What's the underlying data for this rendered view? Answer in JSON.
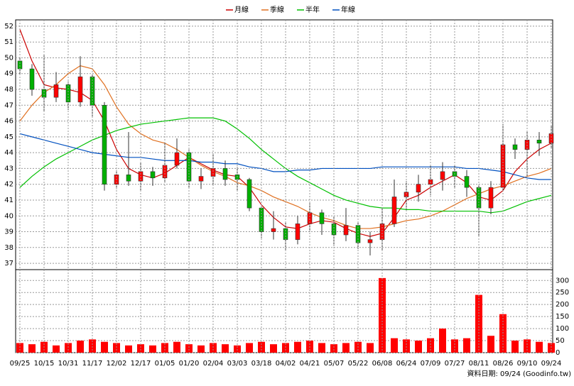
{
  "chart_data": [
    {
      "type": "candlestick",
      "open": [
        49.8,
        49.3,
        48.0,
        47.5,
        48.3,
        47.2,
        48.8,
        47.0,
        42.0,
        42.6,
        42.2,
        42.8,
        42.4,
        43.2,
        44.0,
        42.2,
        42.5,
        43.0,
        42.6,
        42.3,
        40.5,
        39.0,
        39.2,
        38.5,
        39.5,
        40.2,
        39.5,
        38.8,
        39.4,
        38.3,
        38.5,
        39.5,
        41.2,
        41.5,
        42.0,
        42.3,
        42.8,
        42.5,
        41.8,
        40.5,
        41.8,
        44.5,
        44.2,
        44.8,
        44.6
      ],
      "high": [
        50.0,
        49.6,
        50.2,
        49.1,
        48.5,
        50.1,
        48.9,
        47.2,
        42.9,
        45.3,
        43.4,
        43.1,
        44.6,
        44.9,
        44.2,
        43.0,
        43.9,
        43.5,
        43.1,
        42.4,
        40.6,
        40.3,
        39.6,
        40.0,
        40.8,
        40.4,
        40.0,
        40.5,
        39.6,
        39.0,
        40.5,
        42.3,
        42.2,
        42.6,
        43.2,
        43.4,
        43.2,
        42.9,
        42.0,
        42.2,
        45.8,
        44.9,
        45.4,
        45.3,
        45.7
      ],
      "low": [
        48.9,
        47.6,
        46.6,
        47.2,
        46.7,
        46.9,
        46.3,
        41.6,
        41.7,
        41.9,
        41.6,
        41.9,
        42.1,
        43.0,
        41.8,
        41.7,
        42.0,
        41.9,
        41.6,
        40.3,
        38.6,
        38.5,
        37.8,
        38.2,
        39.0,
        38.8,
        38.1,
        38.4,
        37.9,
        37.5,
        37.8,
        39.3,
        40.4,
        40.9,
        41.3,
        41.6,
        41.8,
        41.2,
        38.7,
        40.1,
        41.6,
        43.6,
        42.5,
        43.8,
        44.3
      ],
      "close": [
        49.3,
        48.0,
        47.5,
        48.3,
        47.2,
        48.8,
        47.0,
        42.0,
        42.6,
        42.2,
        42.8,
        42.4,
        43.2,
        44.0,
        42.2,
        42.5,
        43.0,
        42.3,
        42.3,
        40.5,
        39.0,
        39.2,
        38.5,
        39.5,
        40.2,
        39.5,
        38.8,
        39.4,
        38.3,
        38.5,
        39.5,
        41.2,
        41.5,
        42.0,
        42.3,
        42.8,
        42.5,
        41.8,
        40.5,
        41.8,
        44.5,
        44.2,
        44.8,
        44.6,
        45.2
      ],
      "up_color": "#ff0000",
      "down_color": "#00b000",
      "series": [
        {
          "name": "月線",
          "color": "#cc0000",
          "values": [
            51.8,
            49.8,
            48.3,
            48.1,
            48.0,
            47.8,
            47.3,
            46.0,
            44.2,
            43.0,
            42.6,
            42.4,
            42.7,
            43.2,
            43.7,
            43.3,
            42.9,
            42.6,
            42.5,
            41.8,
            40.7,
            39.9,
            39.3,
            39.2,
            39.5,
            39.7,
            39.6,
            39.2,
            38.9,
            38.7,
            38.9,
            39.9,
            41.0,
            41.3,
            41.8,
            42.2,
            42.6,
            42.1,
            41.2,
            41.0,
            41.6,
            42.8,
            43.6,
            44.2,
            44.6
          ]
        },
        {
          "name": "季線",
          "color": "#e07020",
          "values": [
            46.0,
            47.0,
            47.8,
            48.3,
            49.0,
            49.5,
            49.3,
            48.3,
            46.9,
            45.8,
            45.2,
            44.8,
            44.6,
            44.2,
            43.7,
            43.2,
            42.8,
            42.5,
            42.1,
            41.9,
            41.6,
            41.2,
            40.9,
            40.6,
            40.2,
            39.9,
            39.7,
            39.4,
            39.2,
            39.2,
            39.3,
            39.5,
            39.7,
            39.8,
            40.0,
            40.3,
            40.7,
            41.1,
            41.4,
            41.7,
            41.9,
            42.2,
            42.5,
            42.7,
            43.0
          ]
        },
        {
          "name": "半年",
          "color": "#00c000",
          "values": [
            41.8,
            42.5,
            43.1,
            43.6,
            44.0,
            44.4,
            44.8,
            45.1,
            45.4,
            45.6,
            45.8,
            45.9,
            46.0,
            46.1,
            46.2,
            46.2,
            46.2,
            46.0,
            45.5,
            44.9,
            44.2,
            43.6,
            43.0,
            42.5,
            42.1,
            41.7,
            41.3,
            41.0,
            40.8,
            40.6,
            40.5,
            40.5,
            40.4,
            40.4,
            40.3,
            40.3,
            40.3,
            40.3,
            40.3,
            40.2,
            40.3,
            40.6,
            40.9,
            41.1,
            41.3
          ]
        },
        {
          "name": "年線",
          "color": "#0050c0",
          "values": [
            45.2,
            45.0,
            44.8,
            44.6,
            44.4,
            44.2,
            44.0,
            43.9,
            43.8,
            43.7,
            43.7,
            43.6,
            43.5,
            43.5,
            43.5,
            43.4,
            43.4,
            43.3,
            43.3,
            43.1,
            43.0,
            42.8,
            42.8,
            42.9,
            42.9,
            43.0,
            43.0,
            43.0,
            43.0,
            43.0,
            43.1,
            43.1,
            43.1,
            43.1,
            43.1,
            43.1,
            43.1,
            43.0,
            43.0,
            42.9,
            42.8,
            42.6,
            42.4,
            42.3,
            42.3
          ]
        }
      ],
      "ylim": [
        36.6,
        52.4
      ],
      "yticks": [
        37,
        38,
        39,
        40,
        41,
        42,
        43,
        44,
        45,
        46,
        47,
        48,
        49,
        50,
        51,
        52
      ],
      "grid": true
    },
    {
      "type": "bar",
      "categories": [
        "09/25",
        null,
        "10/15",
        null,
        "10/31",
        null,
        "11/17",
        null,
        "12/02",
        null,
        "12/17",
        null,
        "01/05",
        null,
        "01/20",
        null,
        "02/04",
        null,
        "03/03",
        null,
        "03/18",
        null,
        "04/02",
        null,
        "04/21",
        null,
        "05/07",
        null,
        "05/22",
        null,
        "06/08",
        null,
        "06/24",
        null,
        "07/09",
        null,
        "07/27",
        null,
        "08/11",
        null,
        "08/26",
        null,
        "09/10",
        null,
        "09/24"
      ],
      "values": [
        40,
        35,
        45,
        30,
        40,
        50,
        55,
        45,
        40,
        30,
        35,
        30,
        40,
        45,
        35,
        30,
        40,
        35,
        30,
        40,
        45,
        35,
        40,
        45,
        50,
        40,
        35,
        40,
        45,
        40,
        310,
        60,
        55,
        50,
        60,
        100,
        55,
        60,
        240,
        70,
        160,
        50,
        55,
        45,
        40
      ],
      "color": "#ff0000",
      "ylim": [
        0,
        345
      ],
      "yticks": [
        0,
        50,
        100,
        150,
        200,
        250,
        300
      ],
      "grid": true,
      "footnote": "資料日期: 09/24  (Goodinfo.tw)"
    }
  ]
}
